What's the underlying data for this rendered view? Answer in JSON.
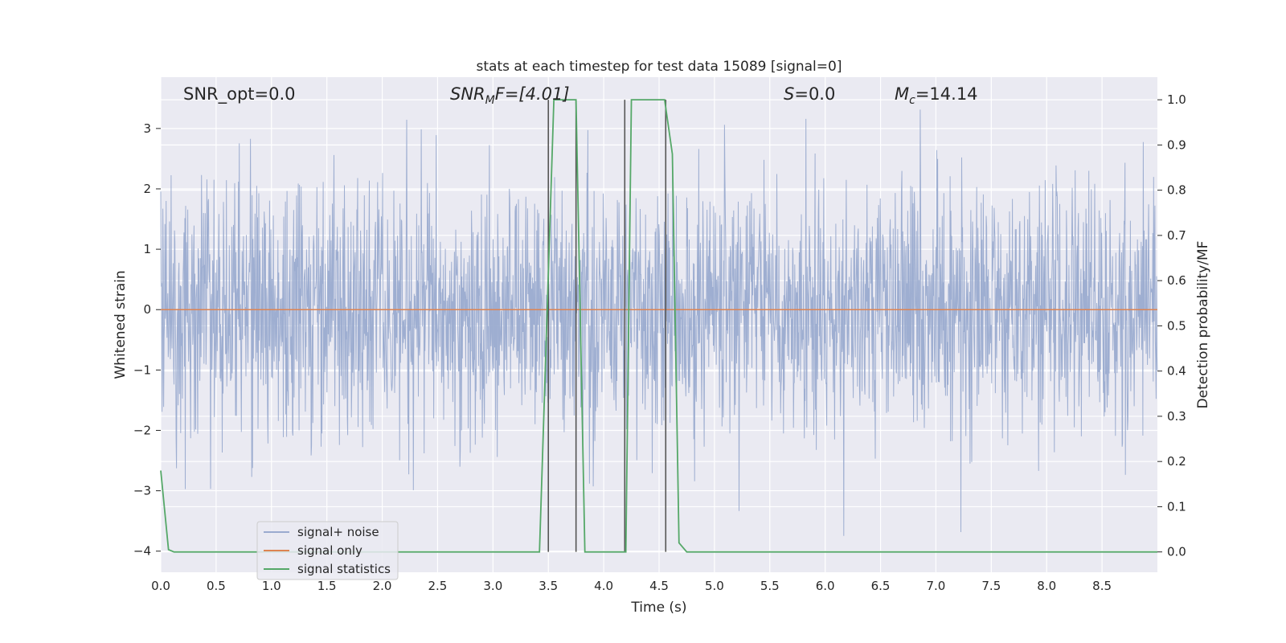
{
  "chart_data": {
    "type": "line",
    "title": "stats at each timestep for test data 15089 [signal=0]",
    "xlabel": "Time (s)",
    "ylabel_left": "Whitened strain",
    "ylabel_right": "Detection probability/MF",
    "xlim": [
      0.0,
      9.0
    ],
    "ylim_left": [
      -4.35,
      3.85
    ],
    "ylim_right": [
      -0.045,
      1.05
    ],
    "x_ticks": [
      "0.0",
      "0.5",
      "1.0",
      "1.5",
      "2.0",
      "2.5",
      "3.0",
      "3.5",
      "4.0",
      "4.5",
      "5.0",
      "5.5",
      "6.0",
      "6.5",
      "7.0",
      "7.5",
      "8.0",
      "8.5"
    ],
    "y_ticks_left": [
      "3",
      "2",
      "1",
      "0",
      "−1",
      "−2",
      "−3",
      "−4"
    ],
    "y_ticks_right": [
      "1.0",
      "0.9",
      "0.8",
      "0.7",
      "0.6",
      "0.5",
      "0.4",
      "0.3",
      "0.2",
      "0.1",
      "0.0"
    ],
    "grid": true,
    "legend_position": "lower-left",
    "annotations": {
      "snr_opt": "SNR_opt=0.0",
      "snr_mf_main": "SNR",
      "snr_mf_sub": "M",
      "snr_mf_rest": "F=[4.01]",
      "s_main": "S",
      "s_rest": "=0.0",
      "mc_main": "M",
      "mc_sub": "c",
      "mc_rest": "=14.14"
    },
    "series": [
      {
        "name": "signal+ noise",
        "color": "#9aabcf",
        "axis": "left",
        "description_value": "whitened noise roughly within [-4, 3.5]"
      },
      {
        "name": "signal only",
        "color": "#dd8452",
        "axis": "left",
        "x": [
          0.0,
          9.0
        ],
        "y": [
          0.0,
          0.0
        ]
      },
      {
        "name": "signal statistics",
        "color": "#55a868",
        "axis": "right",
        "x": [
          0.0,
          0.07,
          0.12,
          3.42,
          3.55,
          3.75,
          3.83,
          4.2,
          4.25,
          4.55,
          4.62,
          4.68,
          4.75,
          9.0
        ],
        "y": [
          0.18,
          0.005,
          0.0,
          0.0,
          1.0,
          1.0,
          0.0,
          0.0,
          1.0,
          1.0,
          0.88,
          0.02,
          0.0,
          0.0
        ]
      }
    ],
    "vertical_markers": {
      "color": "#555555",
      "x": [
        3.5,
        3.75,
        4.19,
        4.56
      ]
    }
  }
}
